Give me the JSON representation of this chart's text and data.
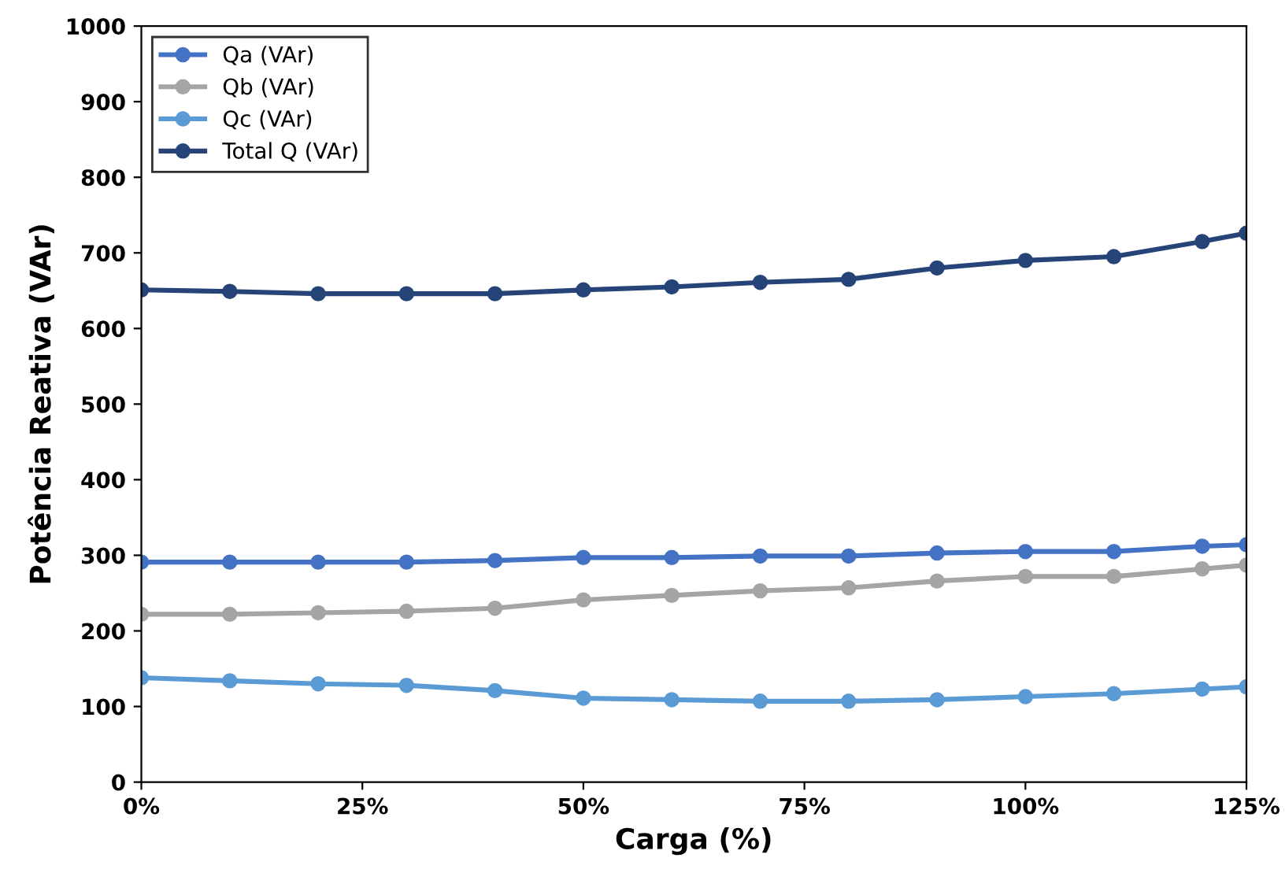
{
  "chart_data": {
    "type": "line",
    "xlabel": "Carga (%)",
    "ylabel": "Potência Reativa (VAr)",
    "x": [
      0,
      10,
      20,
      30,
      40,
      50,
      60,
      70,
      80,
      90,
      100,
      110,
      120,
      125
    ],
    "xlim": [
      0,
      125
    ],
    "xticks": [
      {
        "value": 0,
        "label": "0%"
      },
      {
        "value": 25,
        "label": "25%"
      },
      {
        "value": 50,
        "label": "50%"
      },
      {
        "value": 75,
        "label": "75%"
      },
      {
        "value": 100,
        "label": "100%"
      },
      {
        "value": 125,
        "label": "125%"
      }
    ],
    "ylim": [
      0,
      1000
    ],
    "yticks": [
      0,
      100,
      200,
      300,
      400,
      500,
      600,
      700,
      800,
      900,
      1000
    ],
    "marker": "circle",
    "line_style": "solid",
    "legend": "top left",
    "grid": false,
    "series": [
      {
        "name": "Qa (VAr)",
        "color": "#4472c4",
        "values": [
          291,
          291,
          291,
          291,
          293,
          297,
          297,
          299,
          299,
          303,
          305,
          305,
          312,
          314
        ]
      },
      {
        "name": "Qb (VAr)",
        "color": "#a5a5a5",
        "values": [
          222,
          222,
          224,
          226,
          230,
          241,
          247,
          253,
          257,
          266,
          272,
          272,
          282,
          287
        ]
      },
      {
        "name": "Qc (VAr)",
        "color": "#5b9bd5",
        "values": [
          138,
          134,
          130,
          128,
          121,
          111,
          109,
          107,
          107,
          109,
          113,
          117,
          123,
          126
        ]
      },
      {
        "name": "Total Q (VAr)",
        "color": "#264478",
        "values": [
          651,
          649,
          646,
          646,
          646,
          651,
          655,
          661,
          665,
          680,
          690,
          695,
          715,
          726
        ]
      }
    ]
  }
}
